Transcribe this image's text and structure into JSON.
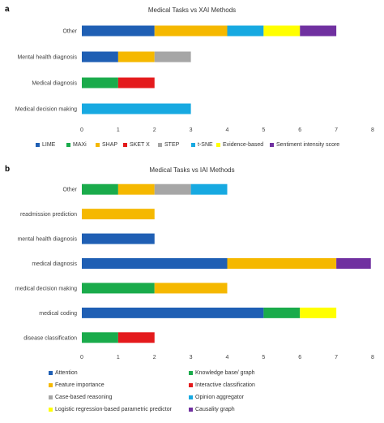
{
  "panels": [
    {
      "label": "a",
      "title": "Medical Tasks vs XAI Methods",
      "chart_data": {
        "type": "bar",
        "orientation": "horizontal",
        "stacked": true,
        "title": "Medical Tasks vs XAI Methods",
        "categories": [
          "Other",
          "Mental health diagnosis",
          "Medical diagnosis",
          "Medical decision making"
        ],
        "xlim": [
          0,
          8
        ],
        "xticks": [
          0,
          1,
          2,
          3,
          4,
          5,
          6,
          7,
          8
        ],
        "legend_position": "bottom",
        "series": [
          {
            "name": "LIME",
            "color": "#1f5fb4",
            "values": [
              2,
              1,
              0,
              0
            ]
          },
          {
            "name": "MAXi",
            "color": "#1aab4b",
            "values": [
              0,
              0,
              1,
              0
            ]
          },
          {
            "name": "SHAP",
            "color": "#f5b800",
            "values": [
              2,
              1,
              0,
              0
            ]
          },
          {
            "name": "SKET X",
            "color": "#e41a1c",
            "values": [
              0,
              0,
              1,
              0
            ]
          },
          {
            "name": "STEP",
            "color": "#a6a6a6",
            "values": [
              0,
              1,
              0,
              0
            ]
          },
          {
            "name": "t-SNE",
            "color": "#17a9e1",
            "values": [
              1,
              0,
              0,
              3
            ]
          },
          {
            "name": "Evidence-based",
            "color": "#ffff00",
            "values": [
              1,
              0,
              0,
              0
            ]
          },
          {
            "name": "Sentiment intensity score",
            "color": "#7030a0",
            "values": [
              1,
              0,
              0,
              0
            ]
          }
        ]
      }
    },
    {
      "label": "b",
      "title": "Medical Tasks vs IAI Methods",
      "chart_data": {
        "type": "bar",
        "orientation": "horizontal",
        "stacked": true,
        "title": "Medical Tasks vs IAI Methods",
        "categories": [
          "Other",
          "readmission prediction",
          "mental health diagnosis",
          "medical diagnosis",
          "medical decision making",
          "medical coding",
          "disease classification"
        ],
        "xlim": [
          0,
          8
        ],
        "xticks": [
          0,
          1,
          2,
          3,
          4,
          5,
          6,
          7,
          8
        ],
        "legend_position": "bottom",
        "series": [
          {
            "name": "Attention",
            "color": "#1f5fb4",
            "values": [
              0,
              0,
              2,
              4,
              0,
              5,
              0
            ]
          },
          {
            "name": "Knowledge base/ graph",
            "color": "#1aab4b",
            "values": [
              1,
              0,
              0,
              0,
              2,
              1,
              1
            ]
          },
          {
            "name": "Feature importance",
            "color": "#f5b800",
            "values": [
              1,
              2,
              0,
              3,
              2,
              0,
              0
            ]
          },
          {
            "name": "Interactive classification",
            "color": "#e41a1c",
            "values": [
              0,
              0,
              0,
              0,
              0,
              0,
              1
            ]
          },
          {
            "name": "Case-based reasoning",
            "color": "#a6a6a6",
            "values": [
              1,
              0,
              0,
              0,
              0,
              0,
              0
            ]
          },
          {
            "name": "Opinion aggregator",
            "color": "#17a9e1",
            "values": [
              1,
              0,
              0,
              0,
              0,
              0,
              0
            ]
          },
          {
            "name": "Logistic regression-based parametric predictor",
            "color": "#ffff00",
            "values": [
              0,
              0,
              0,
              0,
              0,
              1,
              0
            ]
          },
          {
            "name": "Causality graph",
            "color": "#7030a0",
            "values": [
              0,
              0,
              0,
              0.95,
              0,
              0,
              0
            ]
          }
        ]
      }
    }
  ]
}
